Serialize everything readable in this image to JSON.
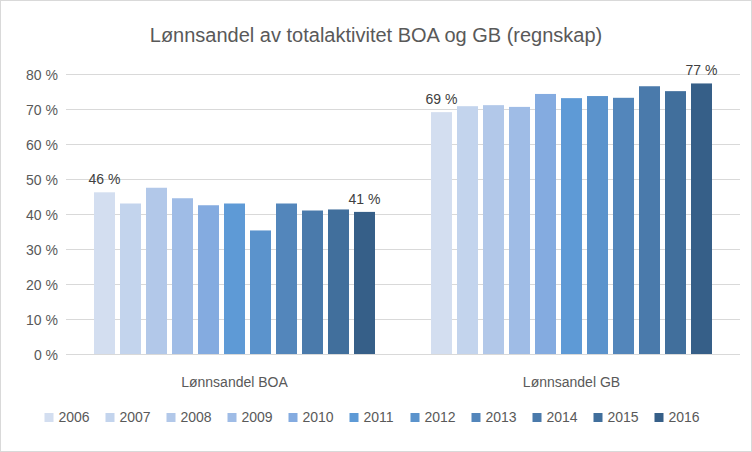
{
  "chart_data": {
    "type": "bar",
    "title": "Lønnsandel av totalaktivitet BOA og GB (regnskap)",
    "categories": [
      "Lønnsandel BOA",
      "Lønnsandel GB"
    ],
    "series": [
      {
        "name": "2006",
        "color": "#d3def0",
        "values": [
          46.2,
          69.1
        ],
        "value_labels": [
          "46 %",
          "69 %"
        ]
      },
      {
        "name": "2007",
        "color": "#c3d4ed",
        "values": [
          43.0,
          70.8
        ],
        "value_labels": [
          null,
          null
        ]
      },
      {
        "name": "2008",
        "color": "#b2c8e9",
        "values": [
          47.5,
          71.1
        ],
        "value_labels": [
          null,
          null
        ]
      },
      {
        "name": "2009",
        "color": "#9fbce6",
        "values": [
          44.5,
          70.6
        ],
        "value_labels": [
          null,
          null
        ]
      },
      {
        "name": "2010",
        "color": "#84abe0",
        "values": [
          42.5,
          74.3
        ],
        "value_labels": [
          null,
          null
        ]
      },
      {
        "name": "2011",
        "color": "#5e9ad6",
        "values": [
          43.0,
          73.1
        ],
        "value_labels": [
          null,
          null
        ]
      },
      {
        "name": "2012",
        "color": "#5b93cc",
        "values": [
          35.3,
          73.7
        ],
        "value_labels": [
          null,
          null
        ]
      },
      {
        "name": "2013",
        "color": "#5386bb",
        "values": [
          43.0,
          73.2
        ],
        "value_labels": [
          null,
          null
        ]
      },
      {
        "name": "2014",
        "color": "#4a7aab",
        "values": [
          41.0,
          76.5
        ],
        "value_labels": [
          null,
          null
        ]
      },
      {
        "name": "2015",
        "color": "#416f9c",
        "values": [
          41.3,
          75.1
        ],
        "value_labels": [
          null,
          null
        ]
      },
      {
        "name": "2016",
        "color": "#365f88",
        "values": [
          40.6,
          77.3
        ],
        "value_labels": [
          "41 %",
          "77 %"
        ]
      }
    ],
    "ylim": [
      0,
      80
    ],
    "yticks": [
      {
        "value": 0,
        "label": "0 %"
      },
      {
        "value": 10,
        "label": "10 %"
      },
      {
        "value": 20,
        "label": "20 %"
      },
      {
        "value": 30,
        "label": "30 %"
      },
      {
        "value": 40,
        "label": "40 %"
      },
      {
        "value": 50,
        "label": "50 %"
      },
      {
        "value": 60,
        "label": "60 %"
      },
      {
        "value": 70,
        "label": "70 %"
      },
      {
        "value": 80,
        "label": "80 %"
      }
    ],
    "grid": true,
    "legend": "bottom",
    "data_labels": true
  }
}
